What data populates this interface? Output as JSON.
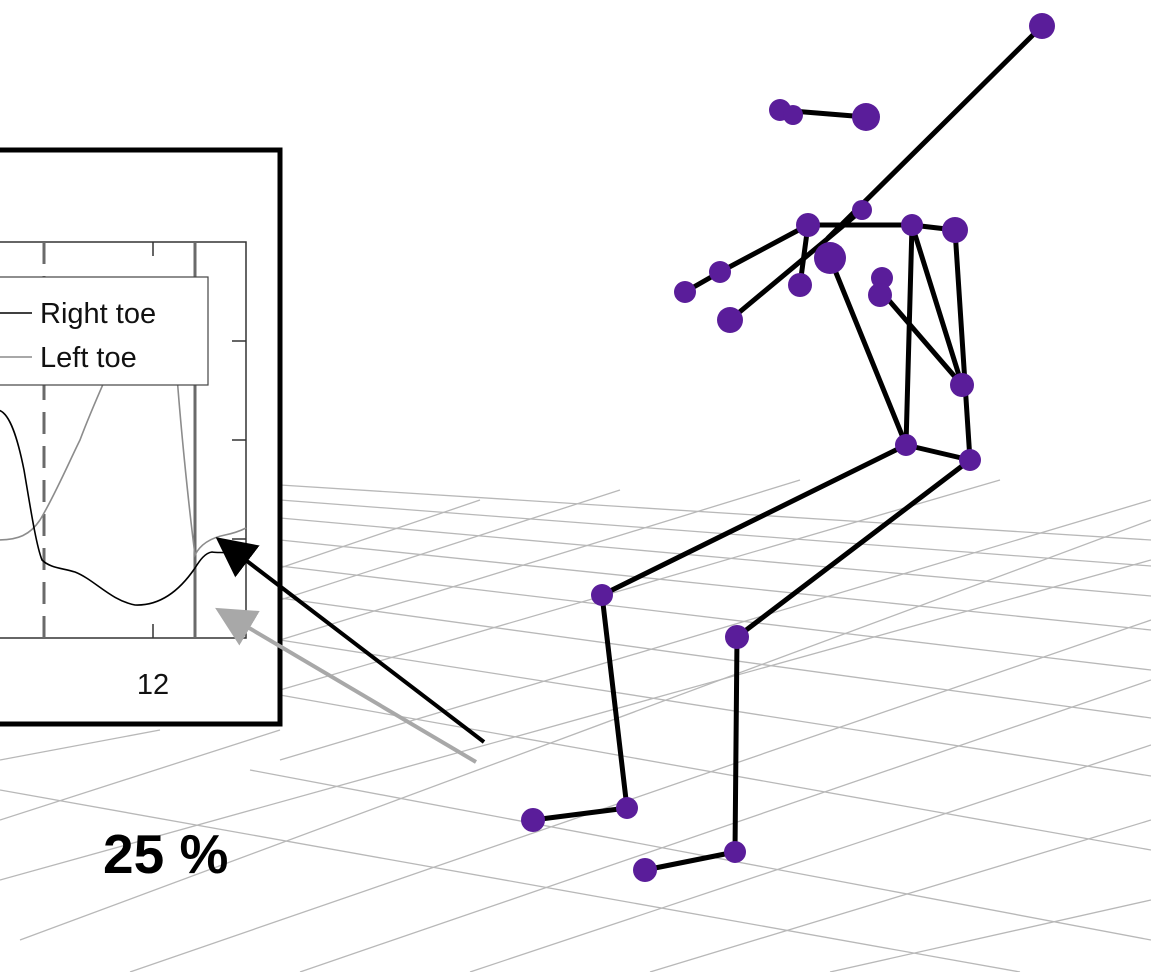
{
  "inset": {
    "legend": {
      "right_label": "Right toe",
      "left_label": "Left toe"
    },
    "x_tick_label": "12"
  },
  "percent_label": "25 %",
  "colors": {
    "joint": "#5a1d9a",
    "bone": "#000000",
    "grid": "#b8b8b8",
    "right_curve": "#000000",
    "left_curve": "#8c8c8c",
    "arrow_black": "#000000",
    "arrow_gray": "#a8a8a8",
    "vertical_line": "#6a6a6a"
  }
}
